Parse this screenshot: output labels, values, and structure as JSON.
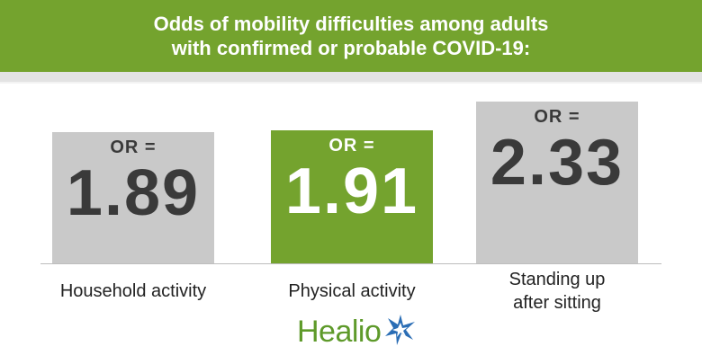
{
  "header": {
    "title_line1": "Odds of mobility difficulties among adults",
    "title_line2": "with confirmed or probable COVID-19:"
  },
  "chart_data": {
    "type": "bar",
    "title": "Odds of mobility difficulties among adults with confirmed or probable COVID-19:",
    "categories": [
      "Household activity",
      "Physical activity",
      "Standing up after sitting"
    ],
    "category_lines": [
      [
        "Household activity"
      ],
      [
        "Physical activity"
      ],
      [
        "Standing up",
        "after sitting"
      ]
    ],
    "values": [
      1.89,
      1.91,
      2.33
    ],
    "value_prefix": "OR =",
    "ylim": [
      0,
      2.33
    ],
    "highlight_index": 1,
    "colors": {
      "bar": "#c9c9c9",
      "highlight": "#74a32e",
      "text_dark": "#3a3a3a",
      "text_light": "#ffffff"
    }
  },
  "logo": {
    "text": "Healio"
  },
  "colors": {
    "header": "#74a32e",
    "logo_green": "#5e9a2a",
    "logo_blue": "#2a6db5"
  }
}
